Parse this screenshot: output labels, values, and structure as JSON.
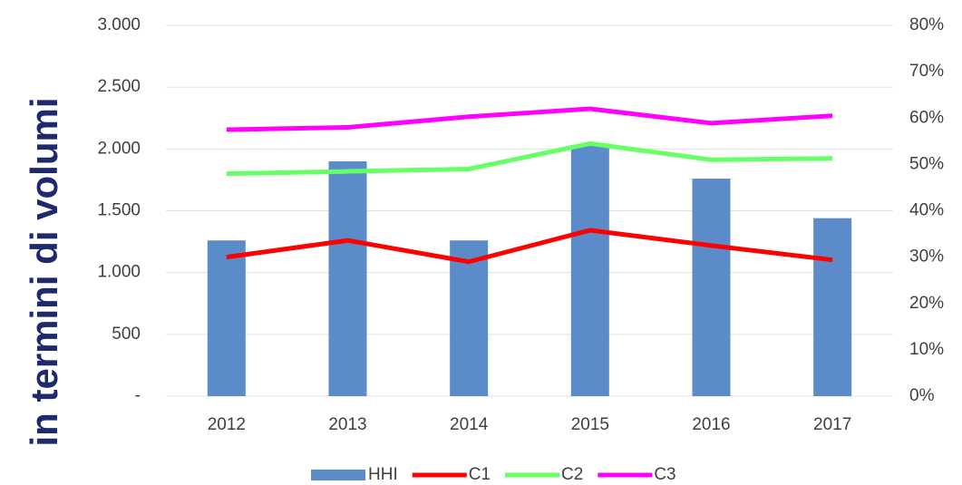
{
  "chart_data": {
    "type": "bar_line",
    "ylabel": "in termini di volumi",
    "categories": [
      "2012",
      "2013",
      "2014",
      "2015",
      "2016",
      "2017"
    ],
    "series": [
      {
        "name": "HHI",
        "type": "bar",
        "color": "#5b8bc9",
        "values": [
          1260,
          1900,
          1260,
          2030,
          1760,
          1440
        ]
      },
      {
        "name": "C1",
        "type": "line",
        "axis": "y2",
        "color": "#ff0000",
        "values": [
          30,
          33.6,
          29,
          35.8,
          32.5,
          29.4
        ]
      },
      {
        "name": "C2",
        "type": "line",
        "axis": "y2",
        "color": "#66ff66",
        "values": [
          48,
          48.5,
          49,
          54.5,
          51,
          51.3
        ]
      },
      {
        "name": "C3",
        "type": "line",
        "axis": "y2",
        "color": "#ff00ff",
        "values": [
          57.5,
          58,
          60.3,
          62,
          58.9,
          60.5
        ]
      }
    ],
    "ylim": [
      0,
      3000
    ],
    "yticks": [
      {
        "value": 0,
        "label": "-"
      },
      500,
      {
        "value": 1000,
        "label": "1.000"
      },
      {
        "value": 1500,
        "label": "1.500"
      },
      {
        "value": 2000,
        "label": "2.000"
      },
      {
        "value": 2500,
        "label": "2.500"
      },
      {
        "value": 3000,
        "label": "3.000"
      }
    ],
    "y2lim": [
      0,
      80
    ],
    "y2ticks": [
      {
        "value": 0,
        "label": "0%"
      },
      {
        "value": 10,
        "label": "10%"
      },
      {
        "value": 20,
        "label": "20%"
      },
      {
        "value": 30,
        "label": "30%"
      },
      {
        "value": 40,
        "label": "40%"
      },
      {
        "value": 50,
        "label": "50%"
      },
      {
        "value": 60,
        "label": "60%"
      },
      {
        "value": 70,
        "label": "70%"
      },
      {
        "value": 80,
        "label": "80%"
      }
    ],
    "grid": true,
    "legend": "bottom"
  }
}
